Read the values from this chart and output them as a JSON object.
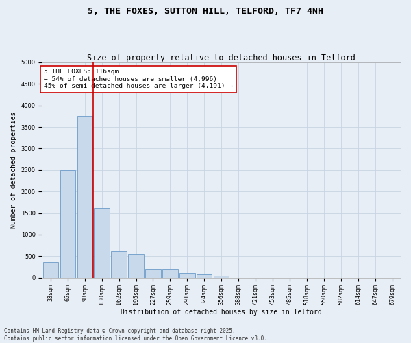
{
  "title_line1": "5, THE FOXES, SUTTON HILL, TELFORD, TF7 4NH",
  "title_line2": "Size of property relative to detached houses in Telford",
  "xlabel": "Distribution of detached houses by size in Telford",
  "ylabel": "Number of detached properties",
  "categories": [
    "33sqm",
    "65sqm",
    "98sqm",
    "130sqm",
    "162sqm",
    "195sqm",
    "227sqm",
    "259sqm",
    "291sqm",
    "324sqm",
    "356sqm",
    "388sqm",
    "421sqm",
    "453sqm",
    "485sqm",
    "518sqm",
    "550sqm",
    "582sqm",
    "614sqm",
    "647sqm",
    "679sqm"
  ],
  "values": [
    370,
    2500,
    3750,
    1620,
    620,
    560,
    210,
    210,
    110,
    75,
    50,
    0,
    0,
    0,
    0,
    0,
    0,
    0,
    0,
    0,
    0
  ],
  "bar_color": "#c9d9ec",
  "bar_edge_color": "#6b9bc8",
  "grid_color": "#c8d4e3",
  "background_color": "#e8eef5",
  "vline_x": 2.5,
  "vline_color": "#cc0000",
  "annotation_text": "5 THE FOXES: 116sqm\n← 54% of detached houses are smaller (4,996)\n45% of semi-detached houses are larger (4,191) →",
  "annotation_box_color": "#ffffff",
  "annotation_box_edge": "#cc0000",
  "ylim": [
    0,
    5000
  ],
  "yticks": [
    0,
    500,
    1000,
    1500,
    2000,
    2500,
    3000,
    3500,
    4000,
    4500,
    5000
  ],
  "footer_line1": "Contains HM Land Registry data © Crown copyright and database right 2025.",
  "footer_line2": "Contains public sector information licensed under the Open Government Licence v3.0.",
  "title_fontsize": 9.5,
  "subtitle_fontsize": 8.5,
  "axis_label_fontsize": 7,
  "tick_fontsize": 6,
  "annotation_fontsize": 6.8,
  "footer_fontsize": 5.5
}
